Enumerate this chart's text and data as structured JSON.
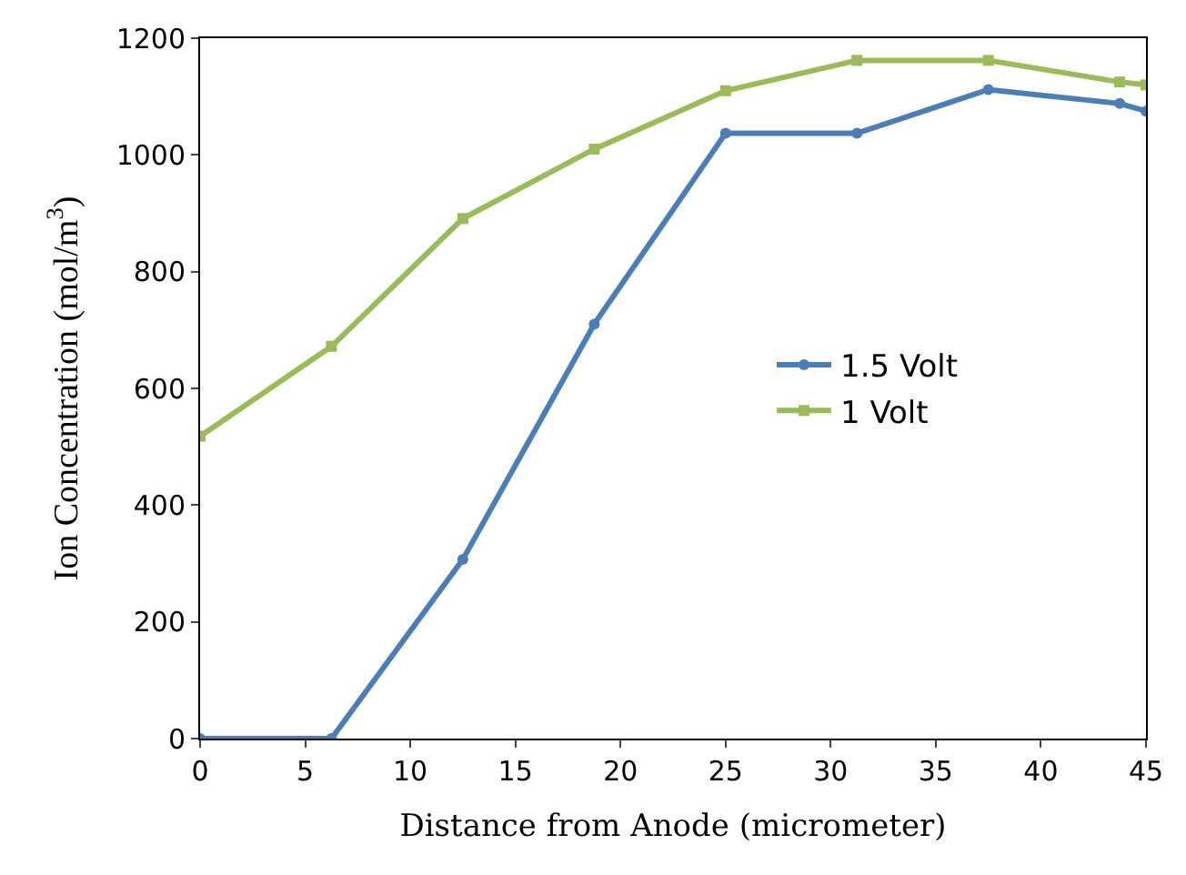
{
  "chart_data": {
    "type": "line",
    "xlabel": "Distance from Anode (micrometer)",
    "ylabel": "Ion Concentration (mol/m$^{3}$)",
    "xlim": [
      0,
      45
    ],
    "xticks": [
      0,
      5,
      10,
      15,
      20,
      25,
      30,
      35,
      40,
      45
    ],
    "ylim": [
      0,
      1200
    ],
    "yticks": [
      0,
      200,
      400,
      600,
      800,
      1000,
      1200
    ],
    "legend": "right",
    "series": [
      {
        "name": "1.5 Volt",
        "color": "#4a7ebb",
        "marker": "circle",
        "x": [
          0,
          6.25,
          12.5,
          18.75,
          25,
          31.25,
          37.5,
          43.75,
          45
        ],
        "values": [
          0,
          0,
          307,
          710,
          1037,
          1037,
          1112,
          1088,
          1075
        ]
      },
      {
        "name": "1 Volt",
        "color": "#9bbb59",
        "marker": "square",
        "x": [
          0,
          6.25,
          12.5,
          18.75,
          25,
          31.25,
          37.5,
          43.75,
          45
        ],
        "values": [
          518,
          672,
          891,
          1010,
          1110,
          1162,
          1162,
          1125,
          1120
        ]
      }
    ]
  }
}
